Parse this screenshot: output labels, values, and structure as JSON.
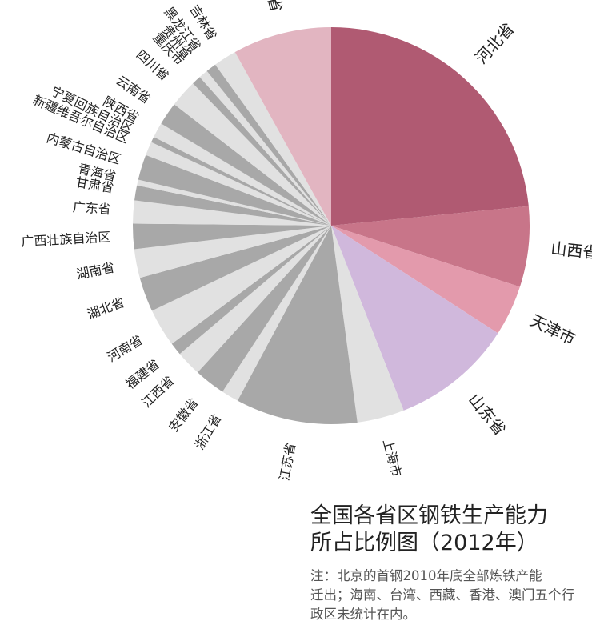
{
  "chart_data": {
    "type": "pie",
    "title_lines": [
      "全国各省区钢铁生产能力",
      "所占比例图（2012年）"
    ],
    "note_lines": [
      "注：北京的首钢2010年底全部炼铁产能",
      "迁出；海南、台湾、西藏、香港、澳门五个行",
      "政区未统计在内。"
    ],
    "slices": [
      {
        "label": "河北省",
        "value": 25.0,
        "color": "#b05a72"
      },
      {
        "label": "山西省",
        "value": 7.0,
        "color": "#c87589"
      },
      {
        "label": "天津市",
        "value": 4.4,
        "color": "#e39aac"
      },
      {
        "label": "山东省",
        "value": 10.6,
        "color": "#d0b8dc"
      },
      {
        "label": "上海市",
        "value": 4.1,
        "color": "#e1e1e1"
      },
      {
        "label": "江苏省",
        "value": 10.6,
        "color": "#a8a8a8"
      },
      {
        "label": "浙江省",
        "value": 1.5,
        "color": "#e1e1e1"
      },
      {
        "label": "安徽省",
        "value": 2.7,
        "color": "#a8a8a8"
      },
      {
        "label": "江西省",
        "value": 2.2,
        "color": "#e1e1e1"
      },
      {
        "label": "福建省",
        "value": 1.1,
        "color": "#a8a8a8"
      },
      {
        "label": "河南省",
        "value": 3.3,
        "color": "#e1e1e1"
      },
      {
        "label": "湖北省",
        "value": 3.0,
        "color": "#a8a8a8"
      },
      {
        "label": "湖南省",
        "value": 2.5,
        "color": "#e1e1e1"
      },
      {
        "label": "广西壮族自治区",
        "value": 2.2,
        "color": "#a8a8a8"
      },
      {
        "label": "广东省",
        "value": 2.0,
        "color": "#e1e1e1"
      },
      {
        "label": "甘肃省",
        "value": 1.3,
        "color": "#a8a8a8"
      },
      {
        "label": "青海省",
        "value": 0.5,
        "color": "#e1e1e1"
      },
      {
        "label": "内蒙古自治区",
        "value": 2.2,
        "color": "#a8a8a8"
      },
      {
        "label": "新疆维吾尔自治区",
        "value": 1.2,
        "color": "#e1e1e1"
      },
      {
        "label": "宁夏回族自治区",
        "value": 0.5,
        "color": "#a8a8a8"
      },
      {
        "label": "陕西省",
        "value": 1.3,
        "color": "#e1e1e1"
      },
      {
        "label": "云南省",
        "value": 2.0,
        "color": "#a8a8a8"
      },
      {
        "label": "四川省",
        "value": 2.4,
        "color": "#e1e1e1"
      },
      {
        "label": "重庆市",
        "value": 0.8,
        "color": "#a8a8a8"
      },
      {
        "label": "贵州省",
        "value": 0.8,
        "color": "#e1e1e1"
      },
      {
        "label": "黑龙江省",
        "value": 0.9,
        "color": "#a8a8a8"
      },
      {
        "label": "吉林省",
        "value": 2.0,
        "color": "#e1e1e1"
      },
      {
        "label": "辽宁省",
        "value": 8.6,
        "color": "#e2b5c1"
      }
    ]
  }
}
